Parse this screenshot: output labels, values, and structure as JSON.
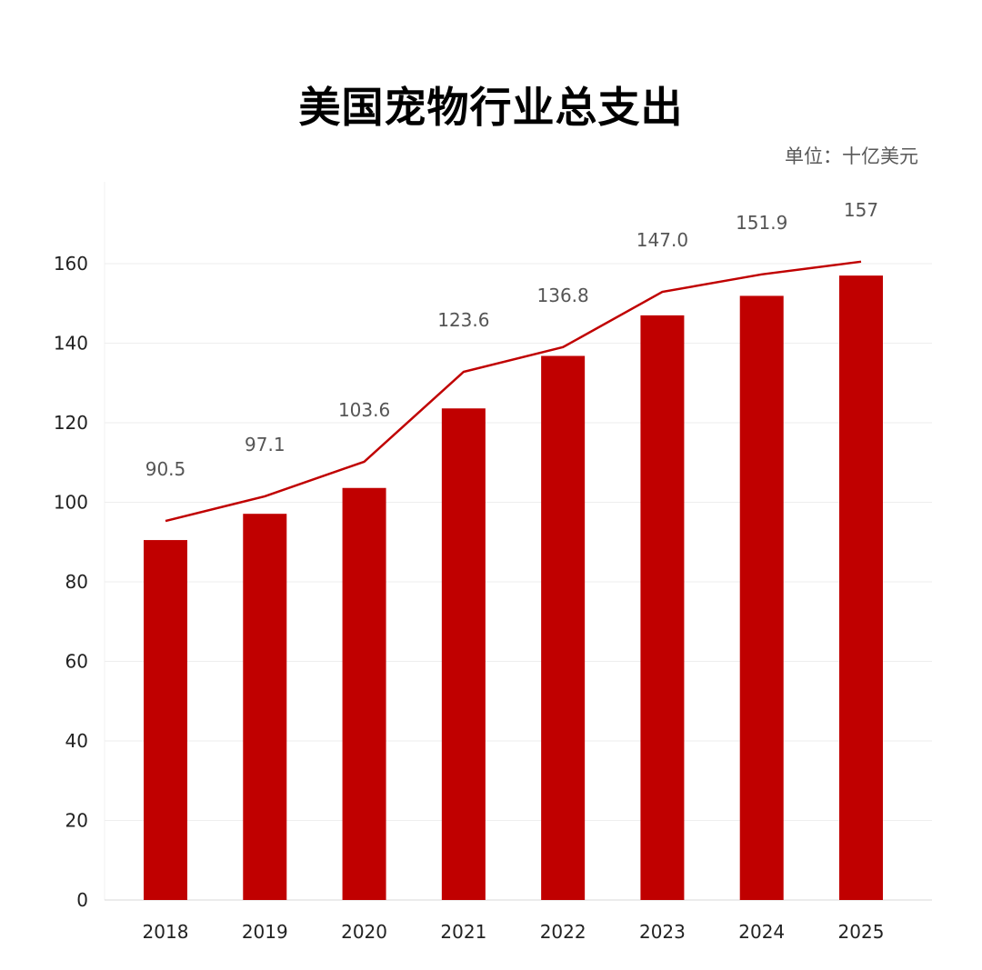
{
  "chart_data": {
    "type": "bar+line",
    "title": "美国宠物行业总支出",
    "unit_label": "单位：十亿美元",
    "categories": [
      "2018",
      "2019",
      "2020",
      "2021",
      "2022",
      "2023",
      "2024",
      "2025"
    ],
    "series": [
      {
        "type": "bar",
        "values": [
          90.5,
          97.1,
          103.6,
          123.6,
          136.8,
          147.0,
          151.9,
          157
        ],
        "labels": [
          "90.5",
          "97.1",
          "103.6",
          "123.6",
          "136.8",
          "147.0",
          "151.9",
          "157"
        ],
        "color": "#C00000"
      },
      {
        "type": "line",
        "values": [
          95.3,
          101.5,
          110.2,
          132.8,
          139.0,
          152.9,
          157.3,
          160.5
        ],
        "color": "#C00000"
      }
    ],
    "ylim": [
      0,
      160
    ],
    "yticks": [
      0,
      20,
      40,
      60,
      80,
      100,
      120,
      140,
      160
    ],
    "grid": true,
    "legend": "none"
  }
}
